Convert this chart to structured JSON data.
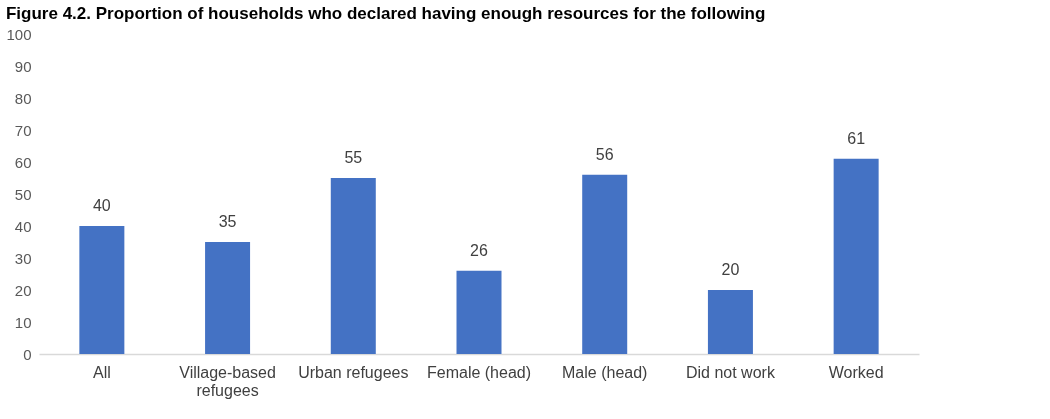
{
  "chart_data": {
    "type": "bar",
    "title": "Figure 4.2. Proportion of households who declared having enough resources for the following",
    "categories": [
      "All",
      "Village-based refugees",
      "Urban refugees",
      "Female (head)",
      "Male (head)",
      "Did not work",
      "Worked"
    ],
    "values": [
      40,
      35,
      55,
      26,
      56,
      20,
      61
    ],
    "color": "#4472c4",
    "ylim": [
      0,
      100
    ],
    "yticks": [
      0,
      10,
      20,
      30,
      40,
      50,
      60,
      70,
      80,
      90,
      100
    ],
    "grid": false,
    "data_labels": true
  }
}
